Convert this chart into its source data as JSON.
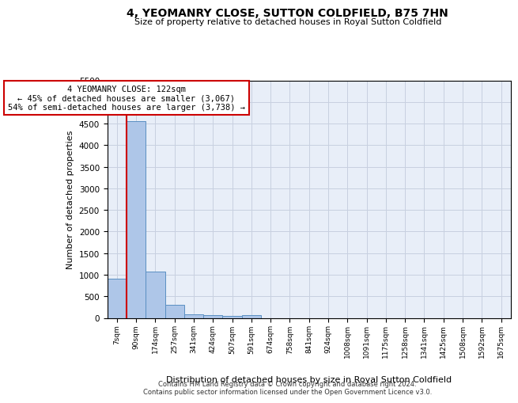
{
  "title": "4, YEOMANRY CLOSE, SUTTON COLDFIELD, B75 7HN",
  "subtitle": "Size of property relative to detached houses in Royal Sutton Coldfield",
  "xlabel": "Distribution of detached houses by size in Royal Sutton Coldfield",
  "ylabel": "Number of detached properties",
  "footer_line1": "Contains HM Land Registry data © Crown copyright and database right 2024.",
  "footer_line2": "Contains public sector information licensed under the Open Government Licence v3.0.",
  "annotation_line1": "4 YEOMANRY CLOSE: 122sqm",
  "annotation_line2": "← 45% of detached houses are smaller (3,067)",
  "annotation_line3": "54% of semi-detached houses are larger (3,738) →",
  "bin_labels": [
    "7sqm",
    "90sqm",
    "174sqm",
    "257sqm",
    "341sqm",
    "424sqm",
    "507sqm",
    "591sqm",
    "674sqm",
    "758sqm",
    "841sqm",
    "924sqm",
    "1008sqm",
    "1091sqm",
    "1175sqm",
    "1258sqm",
    "1341sqm",
    "1425sqm",
    "1508sqm",
    "1592sqm",
    "1675sqm"
  ],
  "bar_heights": [
    900,
    4550,
    1070,
    300,
    85,
    65,
    55,
    65,
    0,
    0,
    0,
    0,
    0,
    0,
    0,
    0,
    0,
    0,
    0,
    0,
    0
  ],
  "bar_color": "#aec6e8",
  "bar_edge_color": "#5a8fc2",
  "red_line_x": 1.5,
  "red_line_color": "#cc0000",
  "annotation_box_color": "#cc0000",
  "background_color": "#e8eef8",
  "grid_color": "#c8d0e0",
  "ylim": [
    0,
    5500
  ],
  "yticks": [
    0,
    500,
    1000,
    1500,
    2000,
    2500,
    3000,
    3500,
    4000,
    4500,
    5000,
    5500
  ]
}
